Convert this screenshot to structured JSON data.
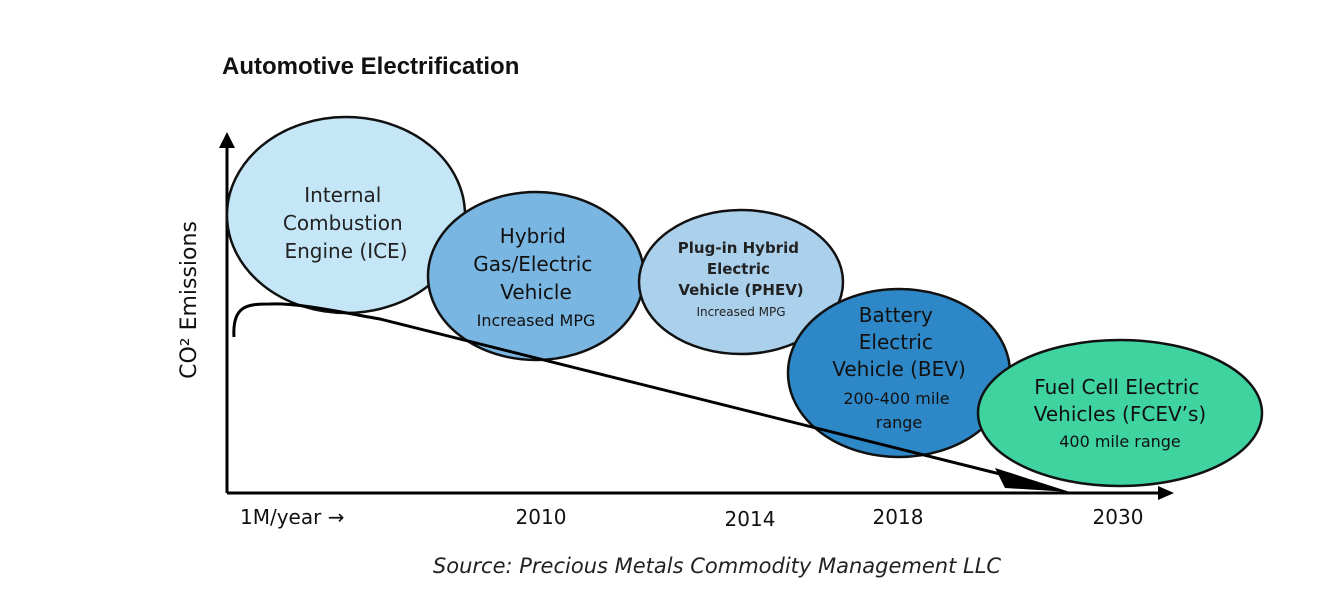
{
  "title": "Automotive Electrification",
  "y_axis_label": "CO² Emissions",
  "x_ticks": {
    "start": "1M/year →",
    "t2010": "2010",
    "t2014": "2014",
    "t2018": "2018",
    "t2030": "2030"
  },
  "source": "Source: Precious Metals Commodity Management LLC",
  "stages": [
    {
      "name": "ice",
      "lines": [
        "Internal",
        "Combustion",
        "Engine (ICE)"
      ],
      "sub": [],
      "color": "#c4e6f7"
    },
    {
      "name": "hybrid",
      "lines": [
        "Hybrid",
        "Gas/Electric",
        "Vehicle"
      ],
      "sub": [
        "Increased MPG"
      ],
      "color": "#7ab6e2"
    },
    {
      "name": "phev",
      "lines": [
        "Plug-in Hybrid",
        "Electric",
        "Vehicle (PHEV)"
      ],
      "sub": [
        "Increased MPG"
      ],
      "color": "#abd0ec"
    },
    {
      "name": "bev",
      "lines": [
        "Battery",
        "Electric",
        "Vehicle (BEV)"
      ],
      "sub": [
        "200-400 mile",
        "range"
      ],
      "color": "#2e88c8"
    },
    {
      "name": "fcev",
      "lines": [
        "Fuel Cell Electric",
        "Vehicles (FCEV’s)"
      ],
      "sub": [
        "400 mile range"
      ],
      "color": "#3fd3a0"
    }
  ]
}
